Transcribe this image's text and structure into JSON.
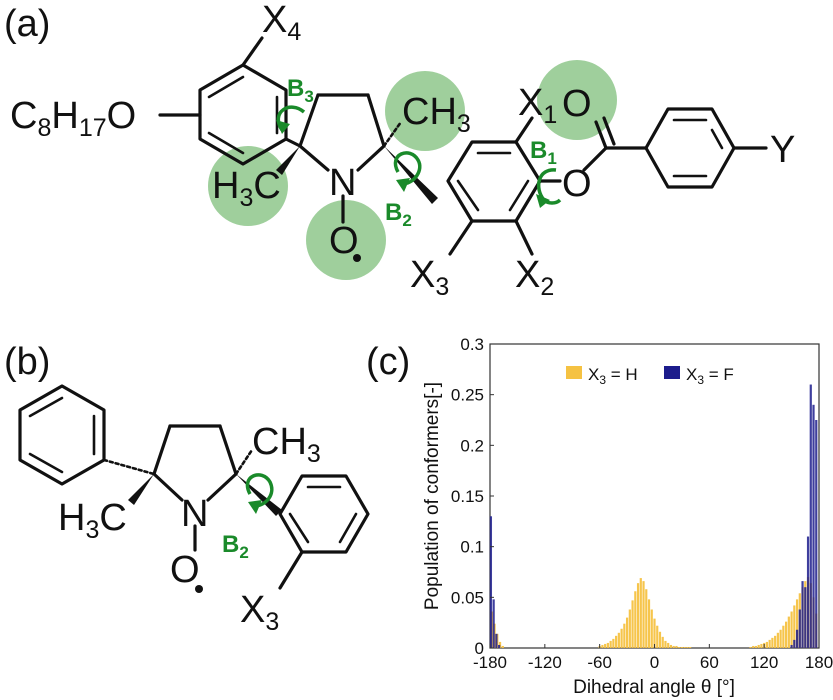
{
  "panels": {
    "a": "(a)",
    "b": "(b)",
    "c": "(c)"
  },
  "molecule_a": {
    "substituents": {
      "x4": "X",
      "x4_sub": "4",
      "x1": "X",
      "x1_sub": "1",
      "x2": "X",
      "x2_sub": "2",
      "x3": "X",
      "x3_sub": "3",
      "y": "Y"
    },
    "alkoxy": {
      "c": "C",
      "c_sub": "8",
      "h": "H",
      "h_sub": "17",
      "o": "O"
    },
    "methyl_top": {
      "ch": "CH",
      "sub": "3"
    },
    "methyl_left": {
      "h": "H",
      "sub": "3",
      "c": "C"
    },
    "n": "N",
    "o_radical": "O",
    "ester_o_carbonyl": "O",
    "ester_o": "O",
    "rotations": {
      "b1": "B",
      "b1_sub": "1",
      "b2": "B",
      "b2_sub": "2",
      "b3": "B",
      "b3_sub": "3"
    }
  },
  "molecule_b": {
    "methyl_top": {
      "ch": "CH",
      "sub": "3"
    },
    "methyl_left": {
      "h": "H",
      "sub": "3",
      "c": "C"
    },
    "n": "N",
    "o_radical": "O",
    "x3": "X",
    "x3_sub": "3",
    "rotation": {
      "b2": "B",
      "b2_sub": "2"
    }
  },
  "colors": {
    "highlight": "#7fbf7b",
    "rotation_arrow": "#1a8a2a",
    "series_h": "#f5c242",
    "series_f": "#1c1c8c"
  },
  "chart_data": {
    "type": "bar",
    "xlabel": "Dihedral angle θ [°]",
    "ylabel": "Population of conformers[-]",
    "xlim": [
      -180,
      180
    ],
    "ylim": [
      0,
      0.3
    ],
    "xticks": [
      "-180",
      "-120",
      "-60",
      "0",
      "60",
      "120",
      "180"
    ],
    "xtick_values": [
      -180,
      -120,
      -60,
      0,
      60,
      120,
      180
    ],
    "yticks": [
      "0",
      "0.05",
      "0.1",
      "0.15",
      "0.2",
      "0.25",
      "0.3"
    ],
    "ytick_values": [
      0,
      0.05,
      0.1,
      0.15,
      0.2,
      0.25,
      0.3
    ],
    "legend_placement": "top-center",
    "series": [
      {
        "name": "X3 = H",
        "legend_x": "X",
        "legend_sub": "3",
        "legend_rest": " = H",
        "x": [
          -178,
          -175,
          -172,
          -169,
          -166,
          -60,
          -57,
          -54,
          -51,
          -48,
          -45,
          -42,
          -39,
          -36,
          -33,
          -30,
          -27,
          -24,
          -21,
          -18,
          -15,
          -12,
          -9,
          -6,
          -3,
          0,
          3,
          6,
          9,
          12,
          15,
          18,
          21,
          24,
          27,
          30,
          33,
          36,
          39,
          105,
          108,
          111,
          114,
          117,
          120,
          123,
          126,
          129,
          132,
          135,
          138,
          141,
          144,
          147,
          150,
          153,
          156,
          159,
          162,
          165,
          168,
          171,
          174,
          177
        ],
        "values": [
          0.036,
          0.024,
          0.014,
          0.006,
          0.002,
          0.002,
          0.003,
          0.004,
          0.005,
          0.007,
          0.009,
          0.012,
          0.015,
          0.019,
          0.024,
          0.03,
          0.038,
          0.047,
          0.056,
          0.064,
          0.069,
          0.066,
          0.058,
          0.048,
          0.038,
          0.029,
          0.022,
          0.016,
          0.011,
          0.007,
          0.005,
          0.003,
          0.002,
          0.002,
          0.001,
          0.001,
          0.001,
          0.001,
          0.001,
          0.001,
          0.002,
          0.002,
          0.003,
          0.004,
          0.005,
          0.006,
          0.008,
          0.01,
          0.012,
          0.015,
          0.018,
          0.022,
          0.026,
          0.031,
          0.036,
          0.042,
          0.048,
          0.054,
          0.06,
          0.066,
          0.07,
          0.064,
          0.05,
          0.034
        ]
      },
      {
        "name": "X3 = F",
        "legend_x": "X",
        "legend_sub": "3",
        "legend_rest": " = F",
        "x": [
          -179,
          -176,
          -173,
          -170,
          150,
          153,
          156,
          159,
          162,
          165,
          168,
          171,
          174,
          177
        ],
        "values": [
          0.13,
          0.048,
          0.014,
          0.003,
          0.003,
          0.008,
          0.018,
          0.038,
          0.066,
          0.06,
          0.11,
          0.26,
          0.24,
          0.225
        ]
      }
    ]
  }
}
